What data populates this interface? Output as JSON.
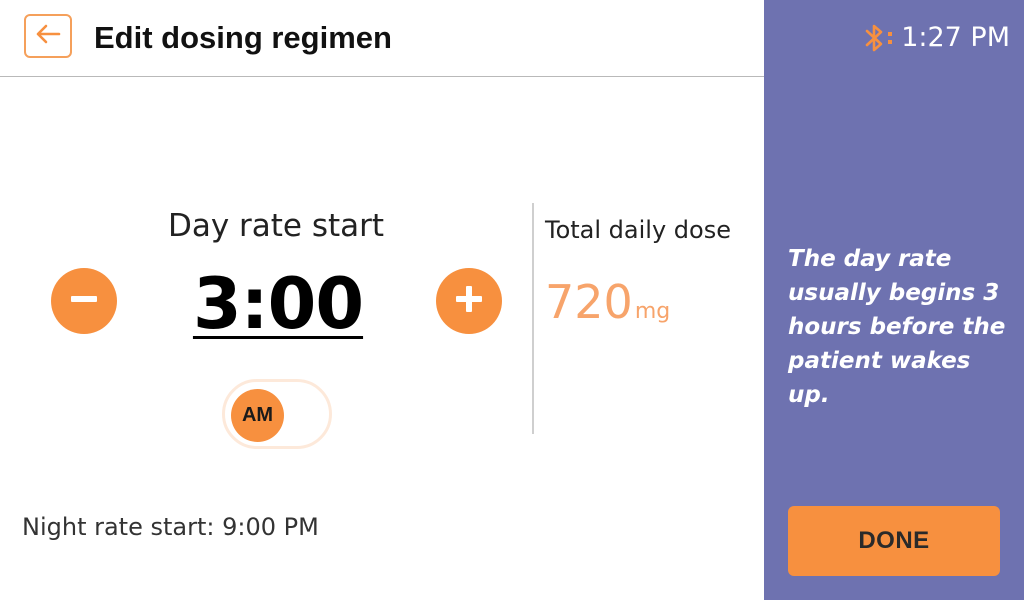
{
  "header": {
    "title": "Edit dosing regimen",
    "back_icon": "arrow-left-icon"
  },
  "status": {
    "time": "1:27 PM",
    "bluetooth_icon": "bluetooth-icon"
  },
  "setting": {
    "label": "Day rate start",
    "value": "3:00",
    "period": "AM",
    "decrement_icon": "minus-icon",
    "increment_icon": "plus-icon"
  },
  "dose": {
    "label": "Total daily dose",
    "value": "720",
    "unit": "mg"
  },
  "night_rate": "Night rate start: 9:00 PM",
  "side_panel": {
    "tip": "The day rate usually begins 3 hours before the patient wakes up.",
    "done_label": "DONE"
  },
  "colors": {
    "accent": "#f7903f",
    "panel": "#6e72b0",
    "dose_text": "#f7a46b"
  }
}
